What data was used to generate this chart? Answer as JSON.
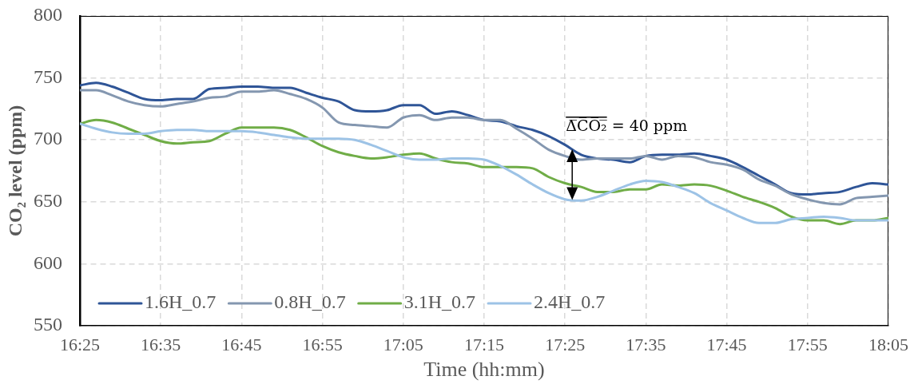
{
  "chart_data": {
    "type": "line",
    "xlabel": "Time (hh:mm)",
    "ylabel": "CO₂ level (ppm)",
    "x": [
      16.4167,
      16.45,
      16.4833,
      16.5167,
      16.55,
      16.5833,
      16.6167,
      16.65,
      16.6833,
      16.7167,
      16.75,
      16.7833,
      16.8167,
      16.85,
      16.8833,
      16.9167,
      16.95,
      16.9833,
      17.0167,
      17.05,
      17.0833,
      17.1167,
      17.15,
      17.1833,
      17.2167,
      17.25,
      17.2833,
      17.3167,
      17.35,
      17.3833,
      17.4167,
      17.45,
      17.4833,
      17.5167,
      17.55,
      17.5833,
      17.6167,
      17.65,
      17.6833,
      17.7167,
      17.75,
      17.7833,
      17.8167,
      17.85,
      17.8833,
      17.9167,
      17.95,
      17.9833,
      18.0167,
      18.05,
      18.0833
    ],
    "series": [
      {
        "name": "1.6H_0.7",
        "color": "#2f5597",
        "values": [
          744,
          746,
          743,
          738,
          733,
          732,
          733,
          733,
          741,
          742,
          743,
          743,
          742,
          742,
          738,
          734,
          731,
          724,
          723,
          724,
          728,
          728,
          721,
          723,
          720,
          716,
          715,
          711,
          708,
          703,
          696,
          688,
          685,
          684,
          682,
          687,
          688,
          688,
          689,
          687,
          684,
          678,
          671,
          664,
          657,
          656,
          657,
          658,
          662,
          665,
          664
        ]
      },
      {
        "name": "0.8H_0.7",
        "color": "#8497b0",
        "values": [
          740,
          740,
          736,
          731,
          728,
          727,
          729,
          731,
          734,
          735,
          739,
          739,
          740,
          737,
          733,
          726,
          714,
          712,
          711,
          710,
          718,
          720,
          716,
          718,
          718,
          716,
          716,
          709,
          701,
          692,
          687,
          684,
          685,
          685,
          685,
          687,
          684,
          687,
          686,
          682,
          680,
          676,
          668,
          663,
          656,
          652,
          649,
          648,
          653,
          654,
          655
        ]
      },
      {
        "name": "3.1H_0.7",
        "color": "#70ad47",
        "values": [
          713,
          716,
          714,
          709,
          704,
          699,
          697,
          698,
          699,
          705,
          710,
          710,
          710,
          708,
          702,
          695,
          690,
          687,
          685,
          686,
          688,
          689,
          685,
          682,
          681,
          678,
          678,
          678,
          677,
          670,
          665,
          662,
          658,
          658,
          660,
          660,
          664,
          663,
          664,
          663,
          659,
          654,
          650,
          645,
          638,
          635,
          635,
          632,
          635,
          635,
          637
        ]
      },
      {
        "name": "2.4H_0.7",
        "color": "#9dc3e6",
        "values": [
          713,
          709,
          706,
          705,
          705,
          707,
          708,
          708,
          707,
          707,
          707,
          706,
          704,
          702,
          701,
          701,
          701,
          700,
          696,
          691,
          686,
          684,
          684,
          685,
          685,
          684,
          679,
          672,
          664,
          657,
          652,
          651,
          654,
          659,
          664,
          667,
          666,
          662,
          657,
          649,
          643,
          637,
          633,
          633,
          636,
          637,
          638,
          637,
          635,
          635,
          635
        ]
      }
    ],
    "xlim": [
      16.4167,
      18.0833
    ],
    "xticks": [
      {
        "value": 16.4167,
        "label": "16:25"
      },
      {
        "value": 16.5833,
        "label": "16:35"
      },
      {
        "value": 16.75,
        "label": "16:45"
      },
      {
        "value": 16.9167,
        "label": "16:55"
      },
      {
        "value": 17.0833,
        "label": "17:05"
      },
      {
        "value": 17.25,
        "label": "17:15"
      },
      {
        "value": 17.4167,
        "label": "17:25"
      },
      {
        "value": 17.5833,
        "label": "17:35"
      },
      {
        "value": 17.75,
        "label": "17:45"
      },
      {
        "value": 17.9167,
        "label": "17:55"
      },
      {
        "value": 18.0833,
        "label": "18:05"
      }
    ],
    "ylim": [
      550,
      800
    ],
    "yticks": [
      550,
      600,
      650,
      700,
      750,
      800
    ],
    "grid": true,
    "legend": "bottom left",
    "marker": "none",
    "line_style": "solid",
    "annotations": [
      {
        "text": "Δ̅C̅O̅₂̅ = 40 ppm",
        "x": 17.4167,
        "y": 696
      }
    ]
  }
}
